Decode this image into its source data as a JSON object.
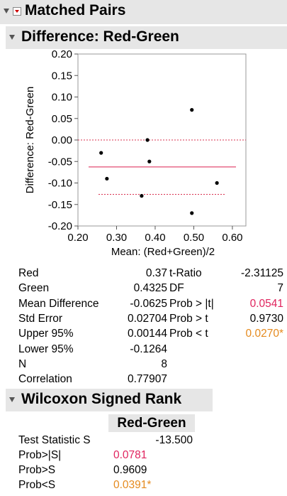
{
  "report": {
    "title": "Matched Pairs",
    "plot_section_title": "Difference: Red-Green",
    "wilcoxon_title": "Wilcoxon Signed Rank"
  },
  "chart_data": {
    "type": "scatter",
    "xlabel": "Mean: (Red+Green)/2",
    "ylabel": "Difference: Red-Green",
    "xlim": [
      0.2,
      0.635
    ],
    "ylim": [
      -0.2,
      0.2
    ],
    "x_ticks": [
      "0.20",
      "0.30",
      "0.40",
      "0.50",
      "0.60"
    ],
    "y_ticks": [
      "0.20",
      "0.15",
      "0.10",
      "0.05",
      "0.00",
      "-0.05",
      "-0.10",
      "-0.15",
      "-0.20"
    ],
    "points": [
      {
        "x": 0.26,
        "y": -0.03
      },
      {
        "x": 0.275,
        "y": -0.09
      },
      {
        "x": 0.365,
        "y": -0.13
      },
      {
        "x": 0.38,
        "y": 0.0
      },
      {
        "x": 0.385,
        "y": -0.05
      },
      {
        "x": 0.495,
        "y": 0.07
      },
      {
        "x": 0.495,
        "y": -0.17
      },
      {
        "x": 0.56,
        "y": -0.1
      }
    ],
    "zero_line": 0.0,
    "mean_line": -0.0625,
    "upper_ci": 0.00144,
    "lower_ci": -0.1264,
    "colors": {
      "mean": "#e86a8a",
      "ci": "#d9304f",
      "zero": "#d9304f",
      "point": "#000000"
    }
  },
  "stats": {
    "left": [
      {
        "label": "Red",
        "value": "0.37"
      },
      {
        "label": "Green",
        "value": "0.4325"
      },
      {
        "label": "Mean Difference",
        "value": "-0.0625"
      },
      {
        "label": "Std Error",
        "value": "0.02704"
      },
      {
        "label": "Upper 95%",
        "value": "0.00144"
      },
      {
        "label": "Lower 95%",
        "value": "-0.1264"
      },
      {
        "label": "N",
        "value": "8"
      },
      {
        "label": "Correlation",
        "value": "0.77907"
      }
    ],
    "right": [
      {
        "label": "t-Ratio",
        "value": "-2.31125",
        "color": ""
      },
      {
        "label": "DF",
        "value": "7",
        "color": ""
      },
      {
        "label": "Prob > |t|",
        "value": "0.0541",
        "color": "red"
      },
      {
        "label": "Prob > t",
        "value": "0.9730",
        "color": ""
      },
      {
        "label": "Prob < t",
        "value": "0.0270*",
        "color": "orange"
      }
    ]
  },
  "wilcoxon": {
    "column_header": "Red-Green",
    "rows": [
      {
        "label": "Test Statistic S",
        "value": "-13.500",
        "color": ""
      },
      {
        "label": "Prob>|S|",
        "value": "0.0781",
        "color": "red"
      },
      {
        "label": "Prob>S",
        "value": "0.9609",
        "color": ""
      },
      {
        "label": "Prob<S",
        "value": "0.0391*",
        "color": "orange"
      }
    ]
  }
}
